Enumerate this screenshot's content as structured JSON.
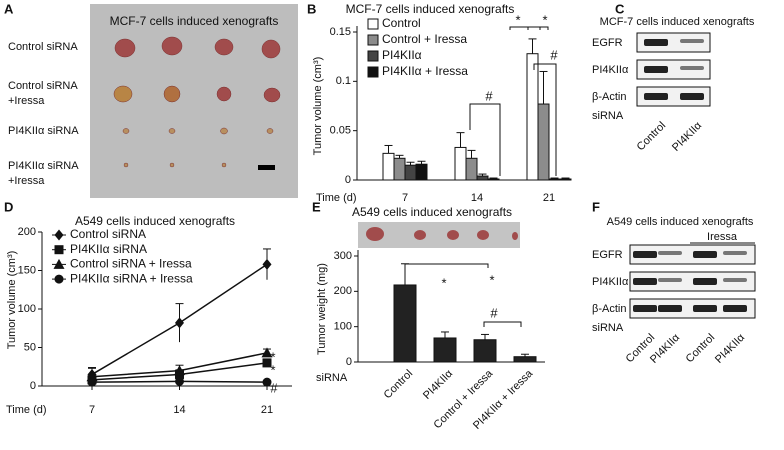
{
  "panel_labels": [
    "A",
    "B",
    "C",
    "D",
    "E",
    "F"
  ],
  "photo_panel": {
    "title": "MCF-7 cells induced xenografts",
    "rows": [
      [
        "Control siRNA"
      ],
      [
        "Control siRNA",
        "+Iressa"
      ],
      [
        "PI4KIIα siRNA"
      ],
      [
        "PI4KIIα siRNA",
        "+Iressa"
      ]
    ]
  },
  "blots": [
    {
      "title": "MCF-7 cells induced xenografts",
      "rows": [
        "EGFR",
        "PI4KIIα",
        "β-Actin"
      ],
      "row_label": "siRNA",
      "lanes": [
        "Control",
        "PI4KIIα"
      ]
    },
    {
      "title": "A549 cells induced xenografts",
      "treatment": "Iressa",
      "rows": [
        "EGFR",
        "PI4KIIα",
        "β-Actin"
      ],
      "row_label": "siRNA",
      "lanes": [
        "Control",
        "PI4KIIα",
        "Control",
        "PI4KIIα"
      ]
    }
  ],
  "chart_data": [
    {
      "type": "bar",
      "title": "MCF-7 cells induced xenografts",
      "y_label": "Tumor volume (cm³)",
      "x_label": "Time (d)",
      "categories": [
        "7",
        "14",
        "21"
      ],
      "series": [
        {
          "name": "Control",
          "color": "#ffffff",
          "values": [
            0.027,
            0.033,
            0.128
          ],
          "errors": [
            0.008,
            0.015,
            0.015
          ]
        },
        {
          "name": "Control + Iressa",
          "color": "#8c8c8c",
          "values": [
            0.022,
            0.022,
            0.077
          ],
          "errors": [
            0.003,
            0.008,
            0.033
          ]
        },
        {
          "name": "PI4KIIα",
          "color": "#444444",
          "values": [
            0.015,
            0.004,
            0.001
          ],
          "errors": [
            0.003,
            0.002,
            0.001
          ]
        },
        {
          "name": "PI4KIIα + Iressa",
          "color": "#111111",
          "values": [
            0.016,
            0.001,
            0.001
          ],
          "errors": [
            0.003,
            0.001,
            0.001
          ]
        }
      ],
      "ylim": [
        0,
        0.15
      ],
      "yticks": [
        0,
        0.05,
        0.1,
        0.15
      ],
      "annotations": [
        "*",
        "*",
        "#",
        "#"
      ]
    },
    {
      "type": "line",
      "title": "A549 cells induced xenografts",
      "y_label": "Tumor volume (cm³)",
      "x_label": "Time (d)",
      "x": [
        7,
        14,
        21
      ],
      "xlim": [
        3,
        23
      ],
      "xticks": [
        7,
        14,
        21
      ],
      "ylim": [
        0,
        200
      ],
      "yticks": [
        0,
        50,
        100,
        150,
        200
      ],
      "series": [
        {
          "name": "Control siRNA",
          "color": "#111111",
          "marker": "diamond",
          "values": [
            15,
            82,
            158
          ],
          "errors": [
            8,
            25,
            20
          ]
        },
        {
          "name": "PI4KIIα siRNA",
          "color": "#111111",
          "marker": "square",
          "values": [
            8,
            15,
            30
          ],
          "errors": [
            5,
            6,
            5
          ]
        },
        {
          "name": "Control siRNA + Iressa",
          "color": "#111111",
          "marker": "triangle",
          "values": [
            12,
            20,
            43
          ],
          "errors": [
            12,
            7,
            5
          ]
        },
        {
          "name": "PI4KIIα siRNA + Iressa",
          "color": "#111111",
          "marker": "circle",
          "values": [
            5,
            6,
            5
          ],
          "errors": [
            2,
            2,
            2
          ]
        }
      ],
      "annotations": [
        "*",
        "*",
        "#"
      ]
    },
    {
      "type": "bar",
      "title": "A549 cells induced xenografts",
      "y_label": "Tumor weight (mg)",
      "x_label": "siRNA",
      "categories": [
        "Control",
        "PI4KIIα",
        "Control + Iressa",
        "PI4KIIα + Iressa"
      ],
      "values": [
        218,
        68,
        63,
        15
      ],
      "errors": [
        60,
        17,
        15,
        7
      ],
      "color": "#222222",
      "ylim": [
        0,
        300
      ],
      "yticks": [
        0,
        100,
        200,
        300
      ],
      "annotations": [
        "*",
        "*",
        "#"
      ]
    }
  ]
}
